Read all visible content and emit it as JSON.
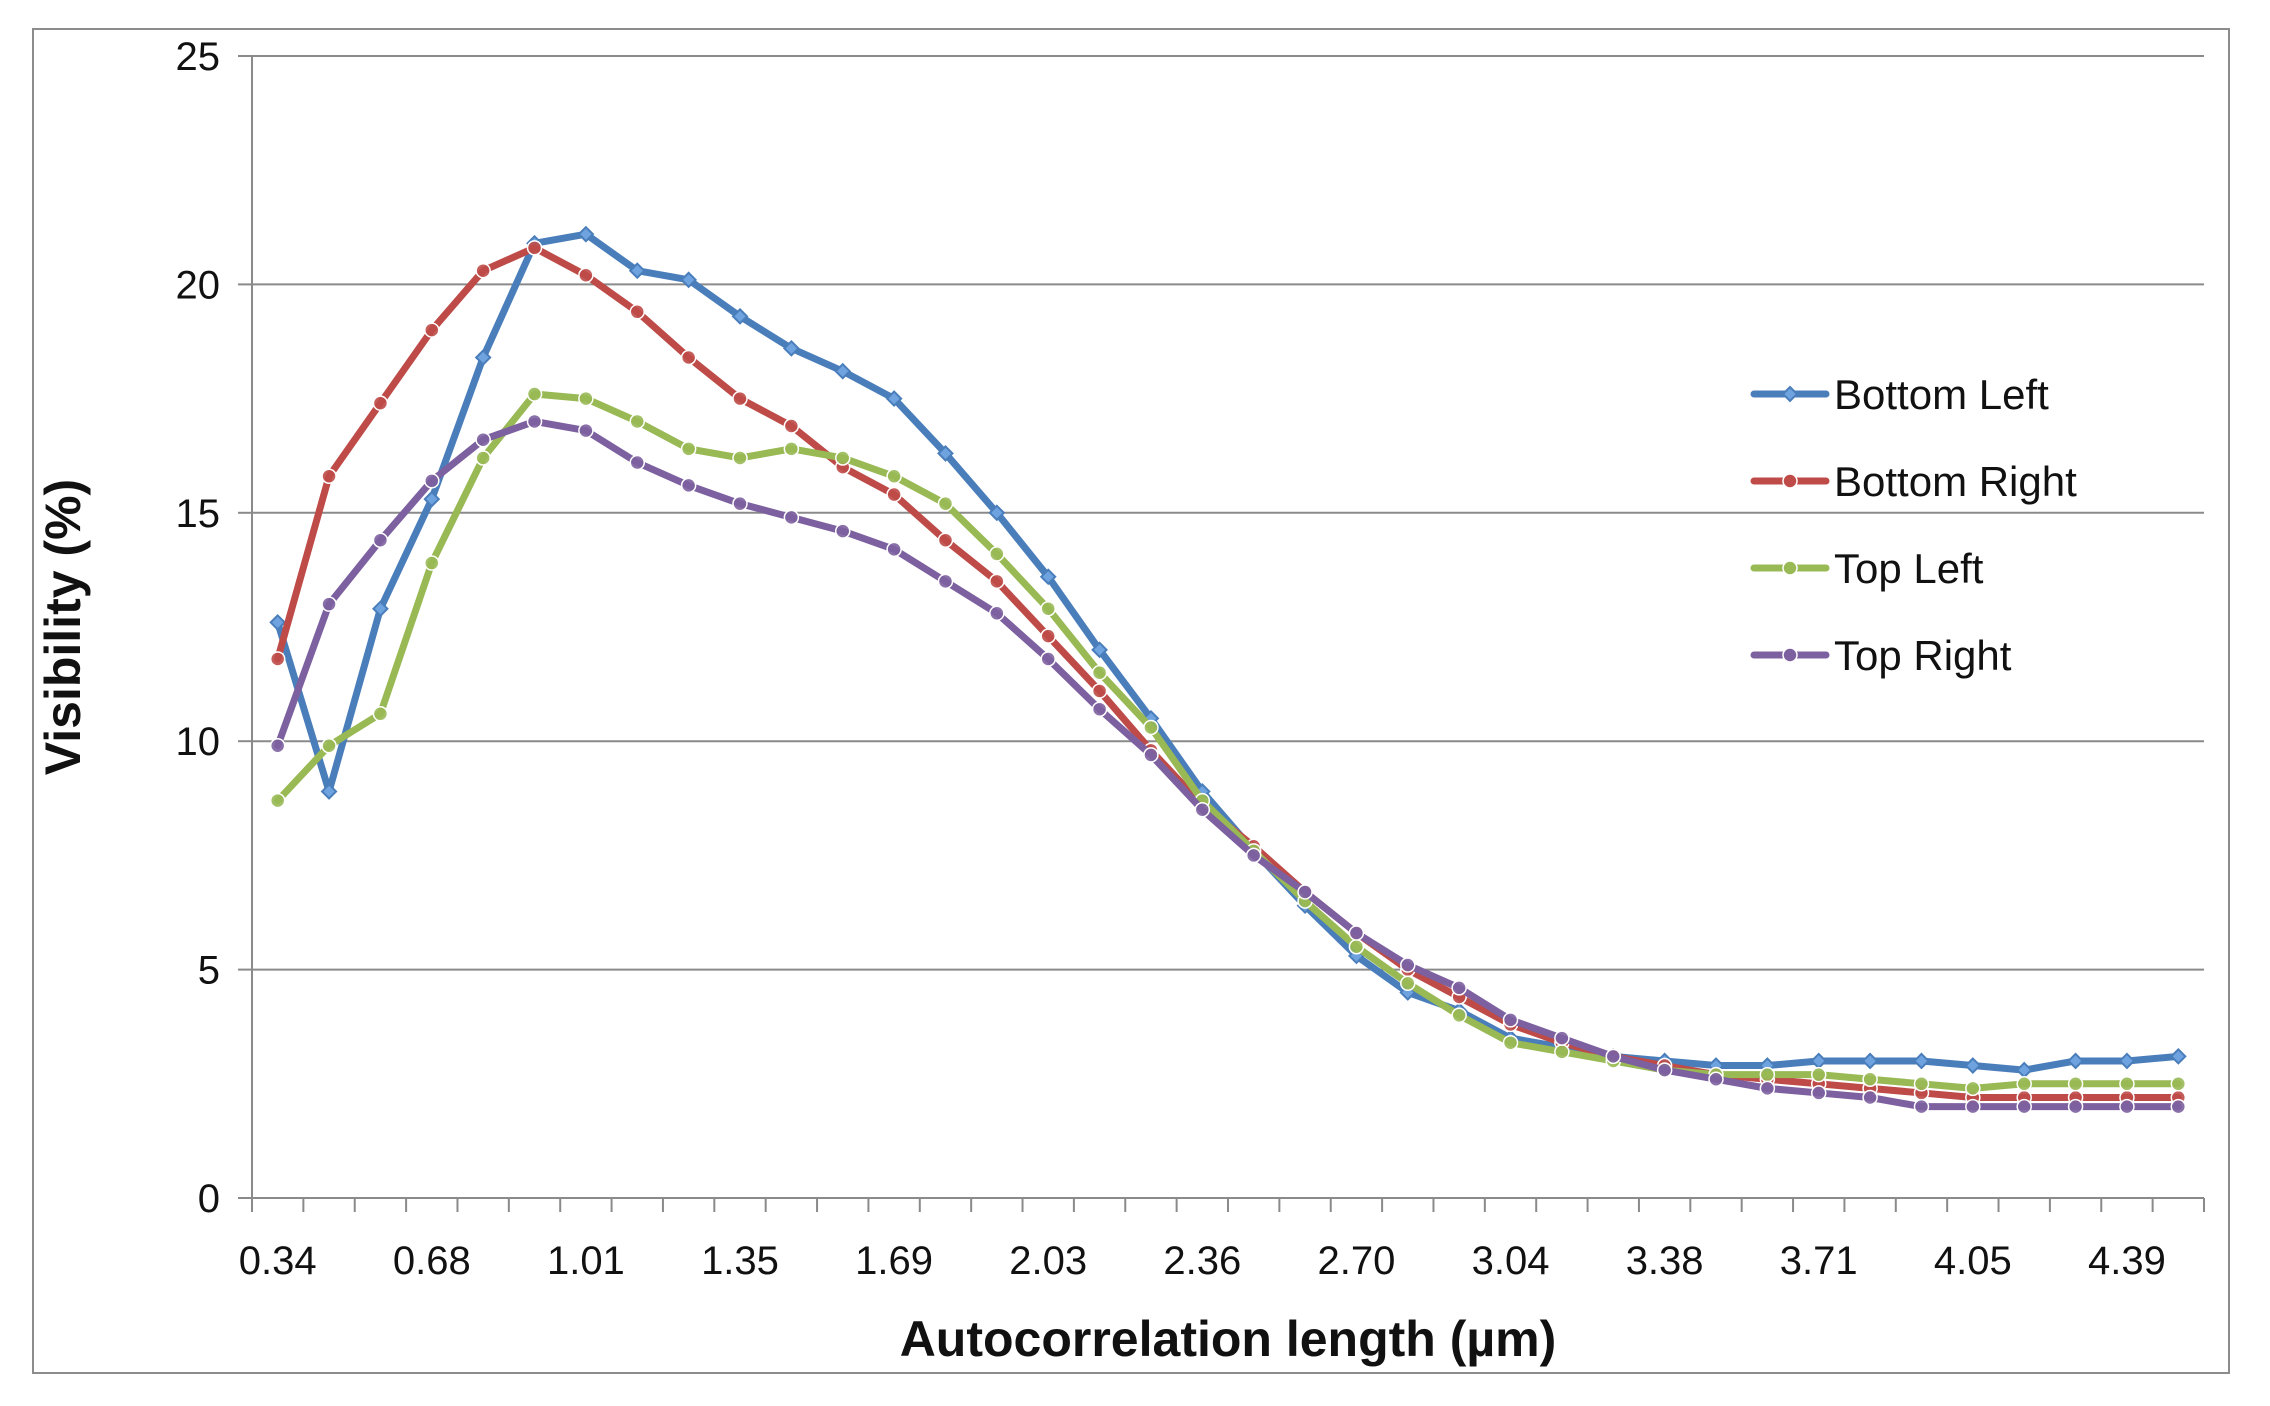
{
  "chart_data": {
    "type": "line",
    "title": "",
    "xlabel": "Autocorrelation length (µm)",
    "ylabel": "Visibility (%)",
    "ylim": [
      0,
      25
    ],
    "y_ticks": [
      0,
      5,
      10,
      15,
      20,
      25
    ],
    "grid": "horizontal",
    "legend_position": "right",
    "x": [
      0.34,
      0.45,
      0.56,
      0.68,
      0.79,
      0.9,
      1.01,
      1.12,
      1.24,
      1.35,
      1.46,
      1.58,
      1.69,
      1.8,
      1.91,
      2.03,
      2.14,
      2.25,
      2.36,
      2.47,
      2.59,
      2.7,
      2.81,
      2.92,
      3.04,
      3.15,
      3.26,
      3.38,
      3.49,
      3.6,
      3.71,
      3.83,
      3.94,
      4.05,
      4.16,
      4.28,
      4.39,
      4.5
    ],
    "x_tick_labels": [
      "0.34",
      "0.68",
      "1.01",
      "1.35",
      "1.69",
      "2.03",
      "2.36",
      "2.70",
      "3.04",
      "3.38",
      "3.71",
      "4.05",
      "4.39"
    ],
    "series": [
      {
        "name": "Bottom Left",
        "color": "#4a7ebb",
        "marker": "diamond",
        "values": [
          12.6,
          8.9,
          12.9,
          15.3,
          18.4,
          20.9,
          21.1,
          20.3,
          20.1,
          19.3,
          18.6,
          18.1,
          17.5,
          16.3,
          15.0,
          13.6,
          12.0,
          10.5,
          8.9,
          7.6,
          6.4,
          5.3,
          4.5,
          4.1,
          3.5,
          3.3,
          3.1,
          3.0,
          2.9,
          2.9,
          3.0,
          3.0,
          3.0,
          2.9,
          2.8,
          3.0,
          3.0,
          3.1
        ]
      },
      {
        "name": "Bottom Right",
        "color": "#be4b48",
        "marker": "circle",
        "values": [
          11.8,
          15.8,
          17.4,
          19.0,
          20.3,
          20.8,
          20.2,
          19.4,
          18.4,
          17.5,
          16.9,
          16.0,
          15.4,
          14.4,
          13.5,
          12.3,
          11.1,
          9.8,
          8.6,
          7.7,
          6.7,
          5.8,
          5.0,
          4.4,
          3.8,
          3.4,
          3.1,
          2.9,
          2.7,
          2.6,
          2.5,
          2.4,
          2.3,
          2.2,
          2.2,
          2.2,
          2.2,
          2.2
        ]
      },
      {
        "name": "Top Left",
        "color": "#98b954",
        "marker": "circle",
        "values": [
          8.7,
          9.9,
          10.6,
          13.9,
          16.2,
          17.6,
          17.5,
          17.0,
          16.4,
          16.2,
          16.4,
          16.2,
          15.8,
          15.2,
          14.1,
          12.9,
          11.5,
          10.3,
          8.7,
          7.6,
          6.5,
          5.5,
          4.7,
          4.0,
          3.4,
          3.2,
          3.0,
          2.8,
          2.7,
          2.7,
          2.7,
          2.6,
          2.5,
          2.4,
          2.5,
          2.5,
          2.5,
          2.5
        ]
      },
      {
        "name": "Top Right",
        "color": "#7d60a0",
        "marker": "circle",
        "values": [
          9.9,
          13.0,
          14.4,
          15.7,
          16.6,
          17.0,
          16.8,
          16.1,
          15.6,
          15.2,
          14.9,
          14.6,
          14.2,
          13.5,
          12.8,
          11.8,
          10.7,
          9.7,
          8.5,
          7.5,
          6.7,
          5.8,
          5.1,
          4.6,
          3.9,
          3.5,
          3.1,
          2.8,
          2.6,
          2.4,
          2.3,
          2.2,
          2.0,
          2.0,
          2.0,
          2.0,
          2.0,
          2.0
        ]
      }
    ]
  }
}
